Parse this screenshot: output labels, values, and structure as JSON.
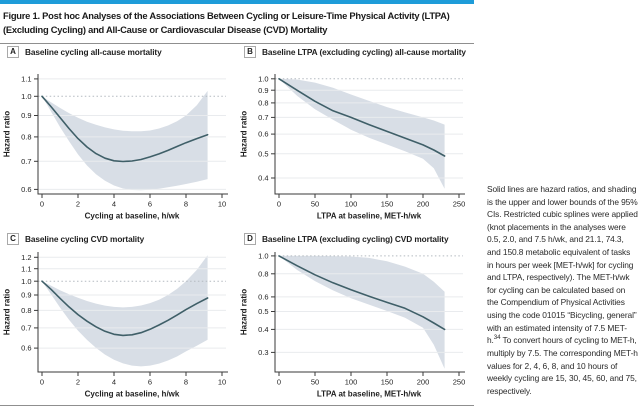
{
  "figure": {
    "title": "Figure 1. Post hoc Analyses of the Associations Between Cycling or Leisure-Time Physical Activity (LTPA) (Excluding Cycling) and All-Cause or Cardiovascular Disease (CVD) Mortality",
    "caption": {
      "part1": "Solid lines are hazard ratios, and shading is the upper and lower bounds of the 95% CIs. Restricted cubic splines were applied (knot placements in the analyses were 0.5, 2.0, and 7.5 h/wk, and 21.1, 74.3, and 150.8 metabolic equivalent of tasks in hours per week [MET-h/wk] for cycling and LTPA, respectively). The MET-h/wk for cycling can be calculated based on the Compendium of Physical Activities using the code 01015 “Bicycling, general” with an estimated intensity of 7.5 MET-h.",
      "sup": "34",
      "part2": " To convert hours of cycling to MET-h, multiply by 7.5. The corresponding MET-h values for 2, 4, 6, 8, and 10 hours of weekly cycling are 15, 30, 45, 60, and 75, respectively."
    }
  },
  "colors": {
    "topbar_blue": "#1e9cd9",
    "ci_band": "#d8dee6",
    "hr_line": "#3f5f68",
    "gridline": "#e9ebee",
    "reference_dotted": "#b4bac0",
    "axis": "#3a3a3a",
    "tick_text": "#1f1f1f",
    "rule_gray": "#8f8f8f"
  },
  "chart_data": [
    {
      "type": "line",
      "panel_label": "A",
      "title": "Baseline cycling all-cause mortality",
      "xlabel": "Cycling at baseline, h/wk",
      "ylabel": "Hazard ratio",
      "log_scale_y": true,
      "reference_line": 1.0,
      "xlim": [
        0,
        10
      ],
      "ylim": [
        0.585,
        1.13
      ],
      "xticks": [
        0,
        2,
        4,
        6,
        8,
        10
      ],
      "yticks": [
        1.1,
        1.0,
        0.9,
        0.8,
        0.7,
        0.6
      ],
      "ytick_labels": [
        "1.1",
        "1.0",
        "0.9",
        "0.8",
        "0.7",
        "0.6"
      ],
      "x": [
        0,
        0.5,
        1,
        1.5,
        2,
        2.5,
        3,
        3.5,
        4,
        4.5,
        5,
        5.5,
        6,
        6.5,
        7,
        7.5,
        8,
        8.6,
        9.2
      ],
      "series": [
        {
          "name": "hazard ratio",
          "values": [
            1.0,
            0.945,
            0.89,
            0.838,
            0.793,
            0.757,
            0.73,
            0.712,
            0.702,
            0.699,
            0.701,
            0.707,
            0.717,
            0.729,
            0.743,
            0.759,
            0.775,
            0.793,
            0.81
          ]
        },
        {
          "name": "95% CI lower",
          "values": [
            1.0,
            0.92,
            0.845,
            0.782,
            0.727,
            0.684,
            0.652,
            0.629,
            0.613,
            0.603,
            0.598,
            0.597,
            0.599,
            0.602,
            0.607,
            0.612,
            0.618,
            0.626,
            0.635
          ]
        },
        {
          "name": "95% CI upper",
          "values": [
            1.0,
            0.968,
            0.938,
            0.912,
            0.889,
            0.87,
            0.855,
            0.843,
            0.834,
            0.828,
            0.825,
            0.825,
            0.829,
            0.838,
            0.852,
            0.872,
            0.9,
            0.952,
            1.03
          ]
        }
      ]
    },
    {
      "type": "line",
      "panel_label": "B",
      "title": "Baseline LTPA (excluding cycling) all-cause mortality",
      "xlabel": "LTPA at baseline, MET-h/wk",
      "ylabel": "Hazard ratio",
      "log_scale_y": true,
      "reference_line": 1.0,
      "xlim": [
        0,
        250
      ],
      "ylim": [
        0.345,
        1.045
      ],
      "xticks": [
        0,
        50,
        100,
        150,
        200,
        250
      ],
      "yticks": [
        1.0,
        0.9,
        0.8,
        0.7,
        0.6,
        0.5,
        0.4
      ],
      "ytick_labels": [
        "1.0",
        "0.9",
        "0.8",
        "0.7",
        "0.6",
        "0.5",
        "0.4"
      ],
      "x": [
        0,
        25,
        50,
        75,
        100,
        125,
        150,
        175,
        200,
        215,
        230
      ],
      "series": [
        {
          "name": "hazard ratio",
          "values": [
            1.0,
            0.9,
            0.812,
            0.744,
            0.7,
            0.655,
            0.615,
            0.578,
            0.543,
            0.518,
            0.49
          ]
        },
        {
          "name": "95% CI lower",
          "values": [
            1.0,
            0.855,
            0.755,
            0.685,
            0.625,
            0.58,
            0.545,
            0.512,
            0.478,
            0.438,
            0.362
          ]
        },
        {
          "name": "95% CI upper",
          "values": [
            1.0,
            0.993,
            0.965,
            0.92,
            0.865,
            0.815,
            0.77,
            0.733,
            0.7,
            0.68,
            0.655
          ]
        }
      ]
    },
    {
      "type": "line",
      "panel_label": "C",
      "title": "Baseline cycling CVD mortality",
      "xlabel": "Cycling at baseline, h/wk",
      "ylabel": "Hazard ratio",
      "log_scale_y": true,
      "reference_line": 1.0,
      "xlim": [
        0,
        10
      ],
      "ylim": [
        0.5,
        1.25
      ],
      "xticks": [
        0,
        2,
        4,
        6,
        8,
        10
      ],
      "yticks": [
        1.2,
        1.1,
        1.0,
        0.9,
        0.8,
        0.7,
        0.6
      ],
      "ytick_labels": [
        "1.2",
        "1.1",
        "1.0",
        "0.9",
        "0.8",
        "0.7",
        "0.6"
      ],
      "x": [
        0,
        0.5,
        1,
        1.5,
        2,
        2.5,
        3,
        3.5,
        4,
        4.5,
        5,
        5.5,
        6,
        6.5,
        7,
        7.5,
        8,
        8.6,
        9.2
      ],
      "series": [
        {
          "name": "hazard ratio",
          "values": [
            1.0,
            0.94,
            0.878,
            0.822,
            0.775,
            0.737,
            0.706,
            0.682,
            0.667,
            0.661,
            0.664,
            0.675,
            0.693,
            0.716,
            0.742,
            0.772,
            0.805,
            0.843,
            0.88
          ]
        },
        {
          "name": "95% CI lower",
          "values": [
            1.0,
            0.905,
            0.818,
            0.745,
            0.686,
            0.639,
            0.601,
            0.571,
            0.549,
            0.534,
            0.525,
            0.522,
            0.525,
            0.533,
            0.546,
            0.563,
            0.585,
            0.611,
            0.64
          ]
        },
        {
          "name": "95% CI upper",
          "values": [
            1.0,
            0.967,
            0.934,
            0.906,
            0.881,
            0.86,
            0.843,
            0.83,
            0.822,
            0.819,
            0.822,
            0.831,
            0.846,
            0.868,
            0.9,
            0.943,
            1.0,
            1.09,
            1.22
          ]
        }
      ]
    },
    {
      "type": "line",
      "panel_label": "D",
      "title": "Baseline LTPA (excluding cycling) CVD mortality",
      "xlabel": "LTPA at baseline, MET-h/wk",
      "ylabel": "Hazard ratio",
      "log_scale_y": true,
      "reference_line": 1.0,
      "xlim": [
        0,
        250
      ],
      "ylim": [
        0.235,
        1.05
      ],
      "xticks": [
        0,
        50,
        100,
        150,
        200,
        250
      ],
      "yticks": [
        1.0,
        0.8,
        0.6,
        0.5,
        0.4,
        0.3
      ],
      "ytick_labels": [
        "1.0",
        "0.8",
        "0.6",
        "0.5",
        "0.4",
        "0.3"
      ],
      "x": [
        0,
        25,
        50,
        75,
        100,
        125,
        150,
        175,
        200,
        215,
        230
      ],
      "series": [
        {
          "name": "hazard ratio",
          "values": [
            1.0,
            0.885,
            0.79,
            0.715,
            0.655,
            0.605,
            0.56,
            0.52,
            0.468,
            0.433,
            0.4
          ]
        },
        {
          "name": "95% CI lower",
          "values": [
            1.0,
            0.84,
            0.73,
            0.65,
            0.59,
            0.545,
            0.503,
            0.462,
            0.408,
            0.33,
            0.245
          ]
        },
        {
          "name": "95% CI upper",
          "values": [
            1.0,
            1.0,
            1.0,
            0.998,
            0.993,
            0.975,
            0.935,
            0.875,
            0.8,
            0.725,
            0.64
          ]
        }
      ]
    }
  ]
}
